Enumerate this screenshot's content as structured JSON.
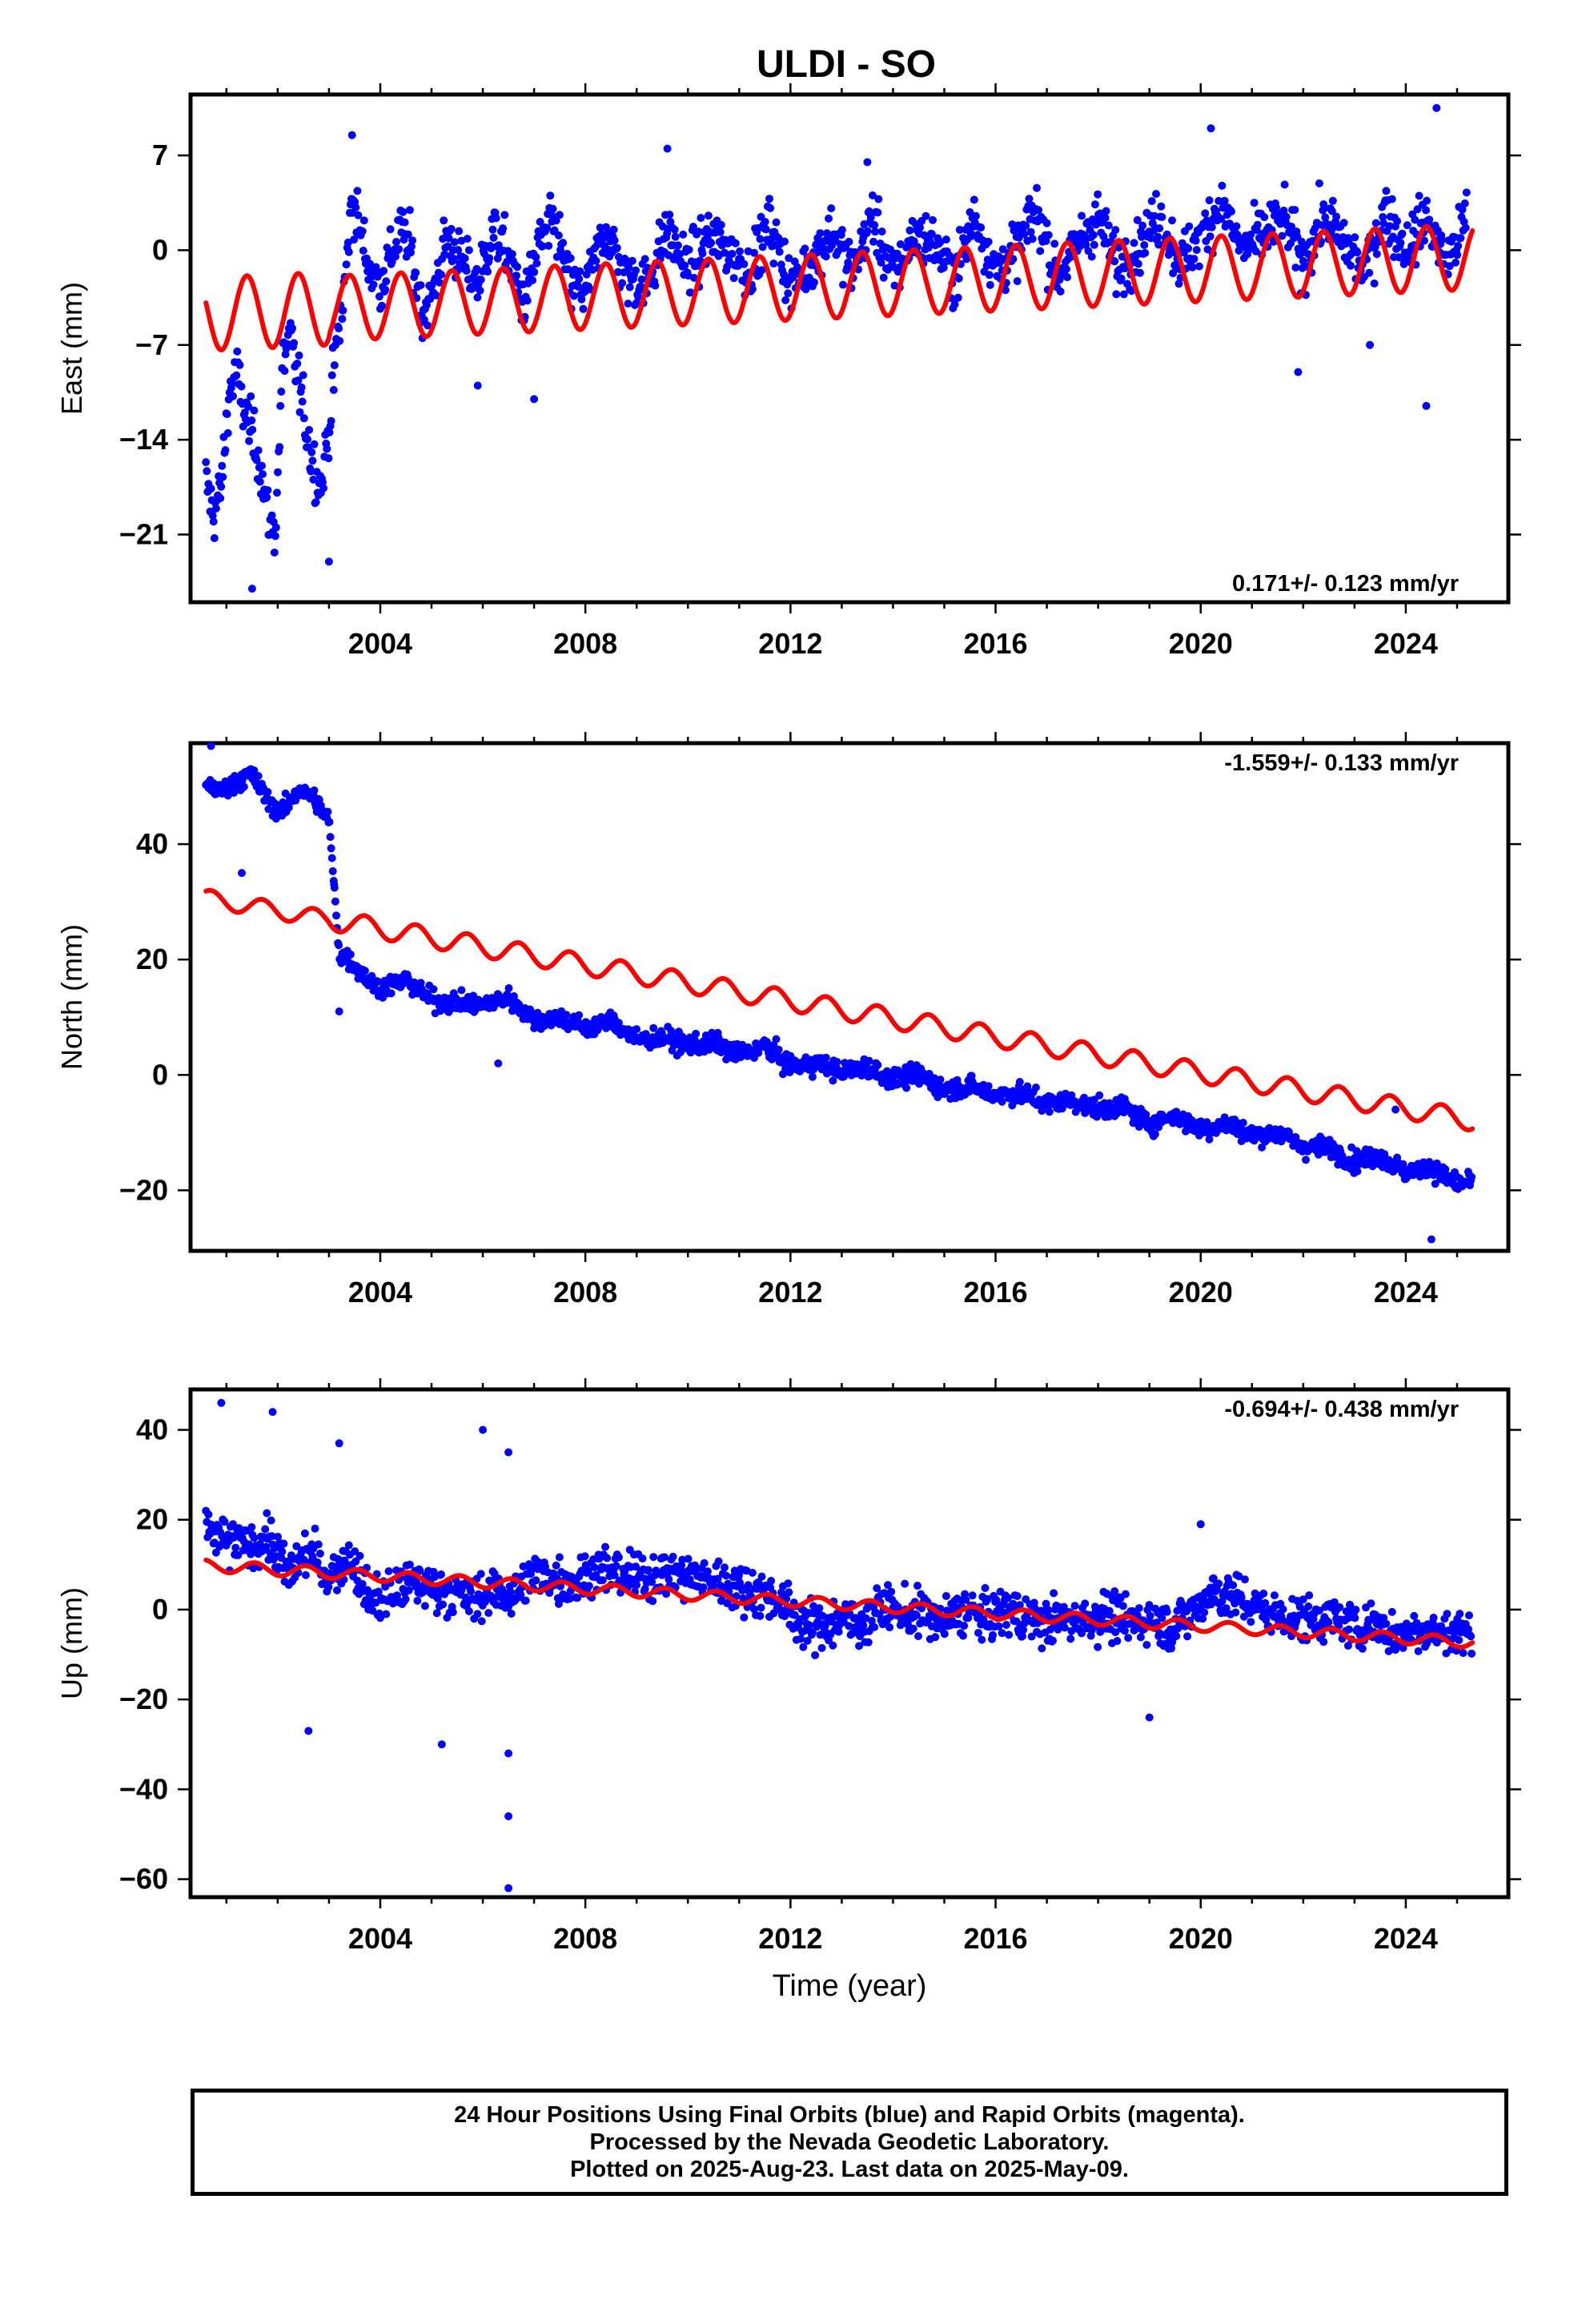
{
  "title": "ULDI - SO",
  "colors": {
    "data": "#0000ff",
    "model": "#ff0000",
    "frame": "#000000"
  },
  "xlabel": "Time (year)",
  "caption": {
    "line1": "24 Hour Positions Using Final Orbits (blue) and Rapid Orbits (magenta).",
    "line2": "Processed by the Nevada Geodetic Laboratory.",
    "line3": "Plotted on 2025-Aug-23. Last data on 2025-May-09."
  },
  "chart_data": [
    {
      "type": "scatter",
      "title": "ULDI - SO",
      "xlabel": "",
      "ylabel": "East (mm)",
      "xlim": [
        2000.3,
        2026.0
      ],
      "ylim": [
        -26,
        11.5
      ],
      "xticks": [
        2004,
        2008,
        2012,
        2016,
        2020,
        2024
      ],
      "yticks": [
        -21,
        -14,
        -7,
        0,
        7
      ],
      "rate": "0.171+/- 0.123 mm/yr",
      "rate_position": "bottom-right",
      "series": [
        {
          "kind": "points",
          "x": [
            2000.6,
            2000.75,
            2000.9,
            2001.05,
            2001.2,
            2001.35,
            2001.5,
            2001.65,
            2001.8,
            2001.95,
            2002.1,
            2002.25,
            2002.4,
            2002.55,
            2002.7,
            2002.85,
            2003.0,
            2003.15,
            2003.3,
            2003.45,
            2003.6,
            2003.8,
            2004.0,
            2004.2,
            2004.4,
            2004.6,
            2004.8,
            2005.0,
            2005.3,
            2005.6,
            2005.9,
            2006.2,
            2006.5,
            2006.8,
            2007.1,
            2007.4,
            2007.7,
            2008.0,
            2008.4,
            2008.8,
            2009.2,
            2009.6,
            2010.0,
            2010.4,
            2010.8,
            2011.2,
            2011.6,
            2012.0,
            2012.4,
            2012.8,
            2013.2,
            2013.6,
            2014.0,
            2014.4,
            2014.8,
            2015.2,
            2015.6,
            2016.0,
            2016.4,
            2016.8,
            2017.2,
            2017.6,
            2018.0,
            2018.4,
            2018.8,
            2019.2,
            2019.6,
            2020.0,
            2020.4,
            2020.8,
            2021.2,
            2021.6,
            2022.0,
            2022.4,
            2022.8,
            2023.2,
            2023.6,
            2024.0,
            2024.4,
            2024.8,
            2025.2
          ],
          "y": [
            -17.0,
            -19.5,
            -17.5,
            -10.5,
            -9.0,
            -12.0,
            -13.5,
            -15.5,
            -19.5,
            -21.0,
            -8.0,
            -6.5,
            -9.5,
            -13.0,
            -16.0,
            -17.5,
            -13.0,
            -7.0,
            -3.0,
            4.0,
            1.5,
            -1.5,
            -2.5,
            -0.5,
            1.5,
            0.0,
            -4.5,
            -3.5,
            1.0,
            -1.0,
            -2.5,
            1.5,
            -0.5,
            -4.0,
            0.5,
            2.0,
            -2.5,
            -3.0,
            1.5,
            -2.0,
            -2.5,
            1.5,
            -1.5,
            1.0,
            0.0,
            -1.5,
            2.0,
            -2.5,
            -1.0,
            1.5,
            -1.5,
            2.5,
            -2.0,
            1.0,
            0.5,
            -2.0,
            2.5,
            -1.5,
            0.0,
            3.0,
            -2.0,
            0.5,
            2.5,
            -1.5,
            0.5,
            2.5,
            -1.0,
            1.0,
            3.5,
            0.0,
            1.0,
            2.5,
            -1.0,
            2.5,
            0.5,
            -1.5,
            3.0,
            0.0,
            2.5,
            -1.0,
            2.5
          ],
          "spread": 2.6,
          "outliers": [
            [
              2003.45,
              8.5
            ],
            [
              2009.6,
              7.5
            ],
            [
              2013.5,
              6.5
            ],
            [
              2020.2,
              9.0
            ],
            [
              2024.6,
              10.5
            ],
            [
              2024.4,
              -11.5
            ],
            [
              2001.5,
              -25.0
            ],
            [
              2003.0,
              -23.0
            ],
            [
              2007.0,
              -11.0
            ],
            [
              2005.9,
              -10.0
            ],
            [
              2021.9,
              -9.0
            ],
            [
              2023.3,
              -7.0
            ]
          ]
        },
        {
          "kind": "model",
          "offset": -2.6,
          "rate": 0.171,
          "amplitude": 2.4,
          "phase": 0.15,
          "amplitude_early": 2.7
        }
      ]
    },
    {
      "type": "scatter",
      "title": "",
      "xlabel": "",
      "ylabel": "North (mm)",
      "xlim": [
        2000.3,
        2026.0
      ],
      "ylim": [
        -30.5,
        57.5
      ],
      "xticks": [
        2004,
        2008,
        2012,
        2016,
        2020,
        2024
      ],
      "yticks": [
        -20,
        0,
        20,
        40
      ],
      "rate": "-1.559+/- 0.133 mm/yr",
      "rate_position": "top-right",
      "series": [
        {
          "kind": "points",
          "x": [
            2000.6,
            2000.9,
            2001.2,
            2001.5,
            2001.8,
            2002.1,
            2002.4,
            2002.7,
            2003.0,
            2003.2,
            2003.4,
            2003.7,
            2004.0,
            2004.5,
            2005.0,
            2005.5,
            2006.0,
            2006.5,
            2007.0,
            2007.5,
            2008.0,
            2008.5,
            2009.0,
            2009.5,
            2010.0,
            2010.5,
            2011.0,
            2011.5,
            2012.0,
            2012.5,
            2013.0,
            2013.5,
            2014.0,
            2014.5,
            2015.0,
            2015.5,
            2016.0,
            2016.5,
            2017.0,
            2017.5,
            2018.0,
            2018.5,
            2019.0,
            2019.5,
            2020.0,
            2020.5,
            2021.0,
            2021.5,
            2022.0,
            2022.5,
            2023.0,
            2023.5,
            2024.0,
            2024.5,
            2025.0,
            2025.3
          ],
          "y": [
            50.5,
            49.0,
            51.0,
            52.0,
            47.5,
            45.5,
            49.5,
            48.0,
            44.0,
            21.0,
            20.0,
            17.0,
            15.0,
            16.5,
            13.0,
            12.5,
            12.0,
            13.5,
            9.5,
            10.0,
            8.0,
            9.5,
            6.0,
            6.5,
            5.0,
            5.5,
            3.5,
            5.0,
            1.5,
            2.0,
            0.5,
            1.5,
            -1.0,
            0.0,
            -2.5,
            -2.0,
            -3.5,
            -3.0,
            -5.0,
            -4.5,
            -6.0,
            -5.5,
            -8.5,
            -7.0,
            -9.5,
            -8.5,
            -10.5,
            -10.0,
            -12.5,
            -12.5,
            -15.0,
            -14.0,
            -17.0,
            -16.0,
            -19.0,
            -18.5
          ],
          "spread": 2.2,
          "outliers": [
            [
              2001.3,
              35.0
            ],
            [
              2003.1,
              33.0
            ],
            [
              2003.2,
              11.0
            ],
            [
              2006.3,
              2.0
            ],
            [
              2024.5,
              -28.5
            ],
            [
              2023.8,
              -6.0
            ],
            [
              2000.7,
              57.0
            ]
          ]
        },
        {
          "kind": "model",
          "offset": 11.3,
          "rate": -1.559,
          "amplitude": 1.8,
          "phase": 0.45,
          "amplitude_early": 1.5
        }
      ]
    },
    {
      "type": "scatter",
      "title": "",
      "xlabel": "Time (year)",
      "ylabel": "Up (mm)",
      "xlim": [
        2000.3,
        2026.0
      ],
      "ylim": [
        -64,
        49
      ],
      "xticks": [
        2004,
        2008,
        2012,
        2016,
        2020,
        2024
      ],
      "yticks": [
        -60,
        -40,
        -20,
        0,
        20,
        40
      ],
      "rate": "-0.694+/- 0.438 mm/yr",
      "rate_position": "top-right",
      "series": [
        {
          "kind": "points",
          "x": [
            2000.6,
            2001.0,
            2001.4,
            2001.8,
            2002.2,
            2002.6,
            2003.0,
            2003.4,
            2003.8,
            2004.2,
            2004.6,
            2005.0,
            2005.4,
            2005.8,
            2006.2,
            2006.6,
            2007.0,
            2007.4,
            2007.8,
            2008.2,
            2008.6,
            2009.0,
            2009.4,
            2009.8,
            2010.2,
            2010.6,
            2011.0,
            2011.4,
            2011.8,
            2012.2,
            2012.6,
            2013.0,
            2013.4,
            2013.8,
            2014.2,
            2014.6,
            2015.0,
            2015.4,
            2015.8,
            2016.2,
            2016.6,
            2017.0,
            2017.4,
            2017.8,
            2018.2,
            2018.6,
            2019.0,
            2019.4,
            2019.8,
            2020.2,
            2020.6,
            2021.0,
            2021.4,
            2021.8,
            2022.2,
            2022.6,
            2023.0,
            2023.4,
            2023.8,
            2024.2,
            2024.6,
            2025.0,
            2025.3
          ],
          "y": [
            18.0,
            15.0,
            14.0,
            16.0,
            8.0,
            13.0,
            7.0,
            12.0,
            2.0,
            3.0,
            6.0,
            5.0,
            4.0,
            2.0,
            4.0,
            3.0,
            8.0,
            7.0,
            6.0,
            9.0,
            8.0,
            7.0,
            8.0,
            8.0,
            7.0,
            6.0,
            5.0,
            4.0,
            2.0,
            -3.0,
            -4.0,
            -2.0,
            -3.0,
            1.0,
            -1.0,
            -1.0,
            -3.0,
            0.0,
            -2.0,
            0.0,
            -2.0,
            -3.0,
            -2.0,
            -2.0,
            -1.0,
            -3.0,
            -2.0,
            -4.0,
            -1.0,
            4.0,
            3.0,
            1.0,
            -1.0,
            -2.0,
            -2.0,
            -2.0,
            -4.0,
            -3.0,
            -6.0,
            -4.0,
            -5.0,
            -5.0,
            -5.0
          ],
          "spread": 6.5,
          "outliers": [
            [
              2000.9,
              46.0
            ],
            [
              2001.9,
              44.0
            ],
            [
              2003.2,
              37.0
            ],
            [
              2006.0,
              40.0
            ],
            [
              2006.5,
              35.0
            ],
            [
              2006.5,
              -46.0
            ],
            [
              2006.5,
              -62.0
            ],
            [
              2006.5,
              -32.0
            ],
            [
              2005.2,
              -30.0
            ],
            [
              2002.6,
              -27.0
            ],
            [
              2019.0,
              -24.0
            ],
            [
              2020.0,
              19.0
            ]
          ]
        },
        {
          "kind": "model",
          "offset": 1.2,
          "rate": -0.694,
          "amplitude": 1.2,
          "phase": 0.3,
          "amplitude_early": 1.3
        }
      ]
    }
  ]
}
